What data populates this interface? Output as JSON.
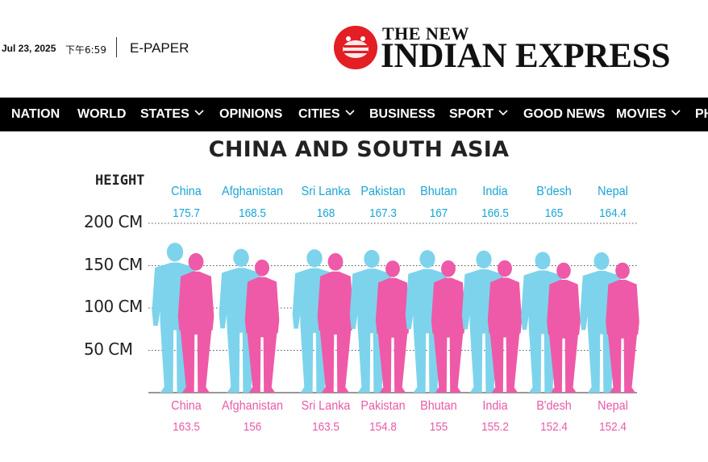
{
  "header": {
    "date": "Jul 23, 2025",
    "time": "下午6:59",
    "epaper": "E-PAPER",
    "logo_line1": "THE NEW",
    "logo_line2": "INDIAN EXPRESS"
  },
  "nav": {
    "items": [
      {
        "label": "NATION",
        "dropdown": false
      },
      {
        "label": "WORLD",
        "dropdown": false
      },
      {
        "label": "STATES",
        "dropdown": true
      },
      {
        "label": "OPINIONS",
        "dropdown": false
      },
      {
        "label": "CITIES",
        "dropdown": true
      },
      {
        "label": "BUSINESS",
        "dropdown": false
      },
      {
        "label": "SPORT",
        "dropdown": true
      },
      {
        "label": "GOOD NEWS",
        "dropdown": false
      },
      {
        "label": "MOVIES",
        "dropdown": true
      },
      {
        "label": "PH",
        "dropdown": false
      }
    ]
  },
  "colors": {
    "male": "#7dd3ec",
    "female": "#ee5aa8",
    "male_text": "#1aa5d6",
    "female_text": "#e85aa8",
    "brand_red": "#e31e24"
  },
  "chart_data": {
    "type": "bar",
    "title": "CHINA AND SOUTH ASIA",
    "ylabel": "HEIGHT",
    "yticks": [
      "200 CM",
      "150 CM",
      "100 CM",
      "50 CM"
    ],
    "ytick_values": [
      200,
      150,
      100,
      50
    ],
    "ylim": [
      0,
      200
    ],
    "categories": [
      "China",
      "Afghanistan",
      "Sri Lanka",
      "Pakistan",
      "Bhutan",
      "India",
      "B'desh",
      "Nepal"
    ],
    "series": [
      {
        "values": [
          175.7,
          168.5,
          168,
          167.3,
          167,
          166.5,
          165,
          164.4
        ]
      },
      {
        "values": [
          163.5,
          156,
          163.5,
          154.8,
          155,
          155.2,
          152.4,
          152.4
        ]
      }
    ],
    "male_labels": [
      "175.7",
      "168.5",
      "168",
      "167.3",
      "167",
      "166.5",
      "165",
      "164.4"
    ],
    "female_labels": [
      "163.5",
      "156",
      "163.5",
      "154.8",
      "155",
      "155.2",
      "152.4",
      "152.4"
    ]
  }
}
